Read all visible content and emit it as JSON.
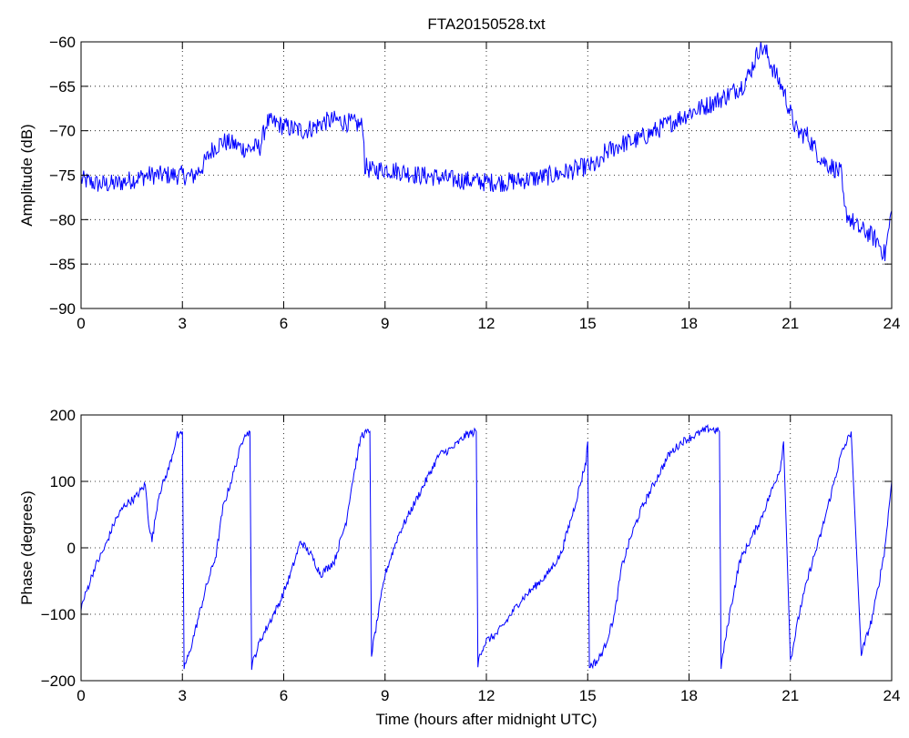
{
  "chart_data": [
    {
      "type": "line",
      "title": "FTA20150528.txt",
      "xlabel": "",
      "ylabel": "Amplitude (dB)",
      "xlim": [
        0,
        24
      ],
      "ylim": [
        -90,
        -60
      ],
      "xticks": [
        0,
        3,
        6,
        9,
        12,
        15,
        18,
        21,
        24
      ],
      "yticks": [
        -90,
        -85,
        -80,
        -75,
        -70,
        -65,
        -60
      ],
      "xtick_labels": [
        "0",
        "3",
        "6",
        "9",
        "12",
        "15",
        "18",
        "21",
        "24"
      ],
      "ytick_labels": [
        "−90",
        "−85",
        "−80",
        "−75",
        "−70",
        "−65",
        "−60"
      ],
      "grid": true,
      "color": "#0000ff",
      "series": [
        {
          "x": [
            0,
            0.5,
            1,
            1.5,
            2,
            2.5,
            3,
            3.3,
            3.6,
            3.9,
            4.2,
            4.5,
            4.8,
            5.0,
            5.3,
            5.5,
            5.8,
            6.0,
            6.3,
            6.6,
            6.9,
            7.2,
            7.5,
            7.8,
            8.1,
            8.35,
            8.4,
            8.6,
            9.0,
            9.5,
            10,
            10.5,
            11,
            11.5,
            12,
            12.5,
            13,
            13.5,
            14,
            14.5,
            15.0,
            15.4,
            15.5,
            16,
            16.5,
            17,
            17.5,
            18,
            18.5,
            19,
            19.3,
            19.6,
            19.8,
            20.0,
            20.1,
            20.3,
            20.5,
            20.8,
            21.0,
            21.2,
            21.5,
            21.8,
            22.0,
            22.3,
            22.5,
            22.6,
            22.8,
            23.0,
            23.3,
            23.6,
            23.8,
            24.0
          ],
          "y": [
            -75.5,
            -76,
            -76,
            -75.5,
            -75,
            -75,
            -75,
            -75.2,
            -74,
            -72,
            -71.2,
            -71.5,
            -72,
            -72,
            -71.8,
            -69,
            -69.2,
            -69.5,
            -69.8,
            -70,
            -69.6,
            -69,
            -68.8,
            -69,
            -69.2,
            -69.5,
            -74,
            -74.5,
            -74.3,
            -74.6,
            -75,
            -75.2,
            -75.5,
            -75.6,
            -75.8,
            -75.8,
            -75.6,
            -75.3,
            -75,
            -74.5,
            -74,
            -73.8,
            -72.5,
            -71.5,
            -71.0,
            -70.0,
            -69.0,
            -68.0,
            -67.2,
            -66.3,
            -65.6,
            -64.8,
            -63.5,
            -61.5,
            -60.5,
            -61.3,
            -63.2,
            -65.5,
            -68,
            -70.2,
            -70.5,
            -72.5,
            -73.5,
            -74.2,
            -74.8,
            -79,
            -80,
            -81,
            -81.5,
            -82.5,
            -84,
            -79
          ]
        }
      ]
    },
    {
      "type": "line",
      "title": "",
      "xlabel": "Time (hours after midnight UTC)",
      "ylabel": "Phase (degrees)",
      "xlim": [
        0,
        24
      ],
      "ylim": [
        -200,
        200
      ],
      "xticks": [
        0,
        3,
        6,
        9,
        12,
        15,
        18,
        21,
        24
      ],
      "yticks": [
        -200,
        -100,
        0,
        100,
        200
      ],
      "xtick_labels": [
        "0",
        "3",
        "6",
        "9",
        "12",
        "15",
        "18",
        "21",
        "24"
      ],
      "ytick_labels": [
        "−200",
        "−100",
        "0",
        "100",
        "200"
      ],
      "grid": true,
      "color": "#0000ff",
      "series": [
        {
          "x": [
            0,
            0.2,
            0.4,
            0.7,
            1.0,
            1.3,
            1.6,
            1.9,
            2.0,
            2.1,
            2.3,
            2.6,
            2.85,
            2.9,
            3.0,
            3.05,
            3.2,
            3.4,
            3.7,
            4.0,
            4.2,
            4.5,
            4.85,
            4.9,
            5.0,
            5.05,
            5.3,
            5.6,
            5.9,
            6.2,
            6.5,
            6.8,
            7.1,
            7.5,
            7.85,
            8.0,
            8.3,
            8.55,
            8.6,
            8.8,
            9.0,
            9.4,
            9.8,
            10.2,
            10.6,
            11.0,
            11.4,
            11.7,
            11.75,
            11.8,
            12.0,
            12.3,
            12.6,
            13.0,
            13.4,
            13.8,
            14.2,
            14.6,
            14.95,
            15.0,
            15.05,
            15.3,
            15.5,
            15.8,
            16.0,
            16.3,
            16.6,
            17.0,
            17.4,
            17.8,
            18.2,
            18.6,
            18.9,
            18.95,
            19.2,
            19.5,
            19.8,
            20.1,
            20.4,
            20.7,
            20.8,
            21.0,
            21.3,
            21.6,
            21.9,
            22.2,
            22.5,
            22.8,
            23.1,
            23.4,
            23.6,
            23.8,
            24.0
          ],
          "y": [
            -90,
            -60,
            -30,
            0,
            40,
            65,
            75,
            95,
            40,
            10,
            80,
            120,
            170,
            165,
            175,
            -180,
            -160,
            -120,
            -60,
            -10,
            60,
            110,
            175,
            170,
            175,
            -178,
            -140,
            -110,
            -80,
            -40,
            10,
            -10,
            -40,
            -20,
            40,
            90,
            170,
            175,
            -160,
            -100,
            -40,
            20,
            60,
            100,
            140,
            150,
            170,
            175,
            -178,
            -160,
            -140,
            -130,
            -110,
            -80,
            -60,
            -40,
            -10,
            60,
            130,
            160,
            -178,
            -170,
            -150,
            -100,
            -30,
            20,
            60,
            100,
            140,
            160,
            170,
            180,
            175,
            -178,
            -100,
            -20,
            10,
            40,
            80,
            120,
            160,
            -170,
            -90,
            -30,
            20,
            80,
            140,
            175,
            -160,
            -110,
            -60,
            0,
            100
          ]
        }
      ]
    }
  ]
}
